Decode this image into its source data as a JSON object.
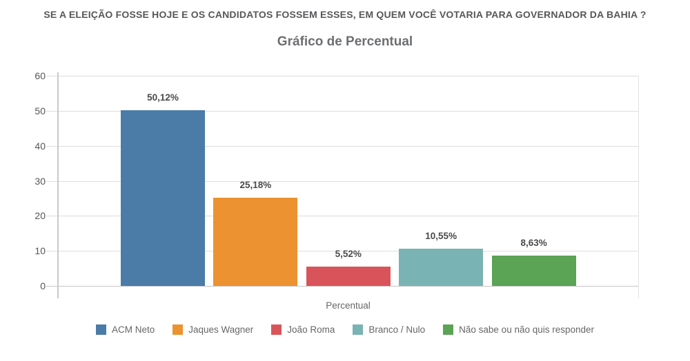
{
  "question": "SE A ELEIÇÃO FOSSE HOJE E OS CANDIDATOS FOSSEM ESSES, EM QUEM VOCÊ VOTARIA PARA GOVERNADOR DA BAHIA ?",
  "chart_data": {
    "type": "bar",
    "title": "Gráfico de Percentual",
    "xlabel": "Percentual",
    "ylabel": "",
    "ylim": [
      0,
      60
    ],
    "yticks": [
      0,
      10,
      20,
      30,
      40,
      50,
      60
    ],
    "grid": true,
    "legend_position": "bottom",
    "categories": [
      "ACM Neto",
      "Jaques Wagner",
      "João Roma",
      "Branco / Nulo",
      "Não sabe ou não quis responder"
    ],
    "values": [
      50.12,
      25.18,
      5.52,
      10.55,
      8.63
    ],
    "value_labels": [
      "50,12%",
      "25,18%",
      "5,52%",
      "10,55%",
      "8,63%"
    ],
    "colors": [
      "#4b7ba7",
      "#ec9230",
      "#d9545a",
      "#7ab3b3",
      "#5ba355"
    ],
    "gridline_color": "#dddddd",
    "axis_color": "#c9c9c9",
    "label_color": "#4a4a4a"
  }
}
